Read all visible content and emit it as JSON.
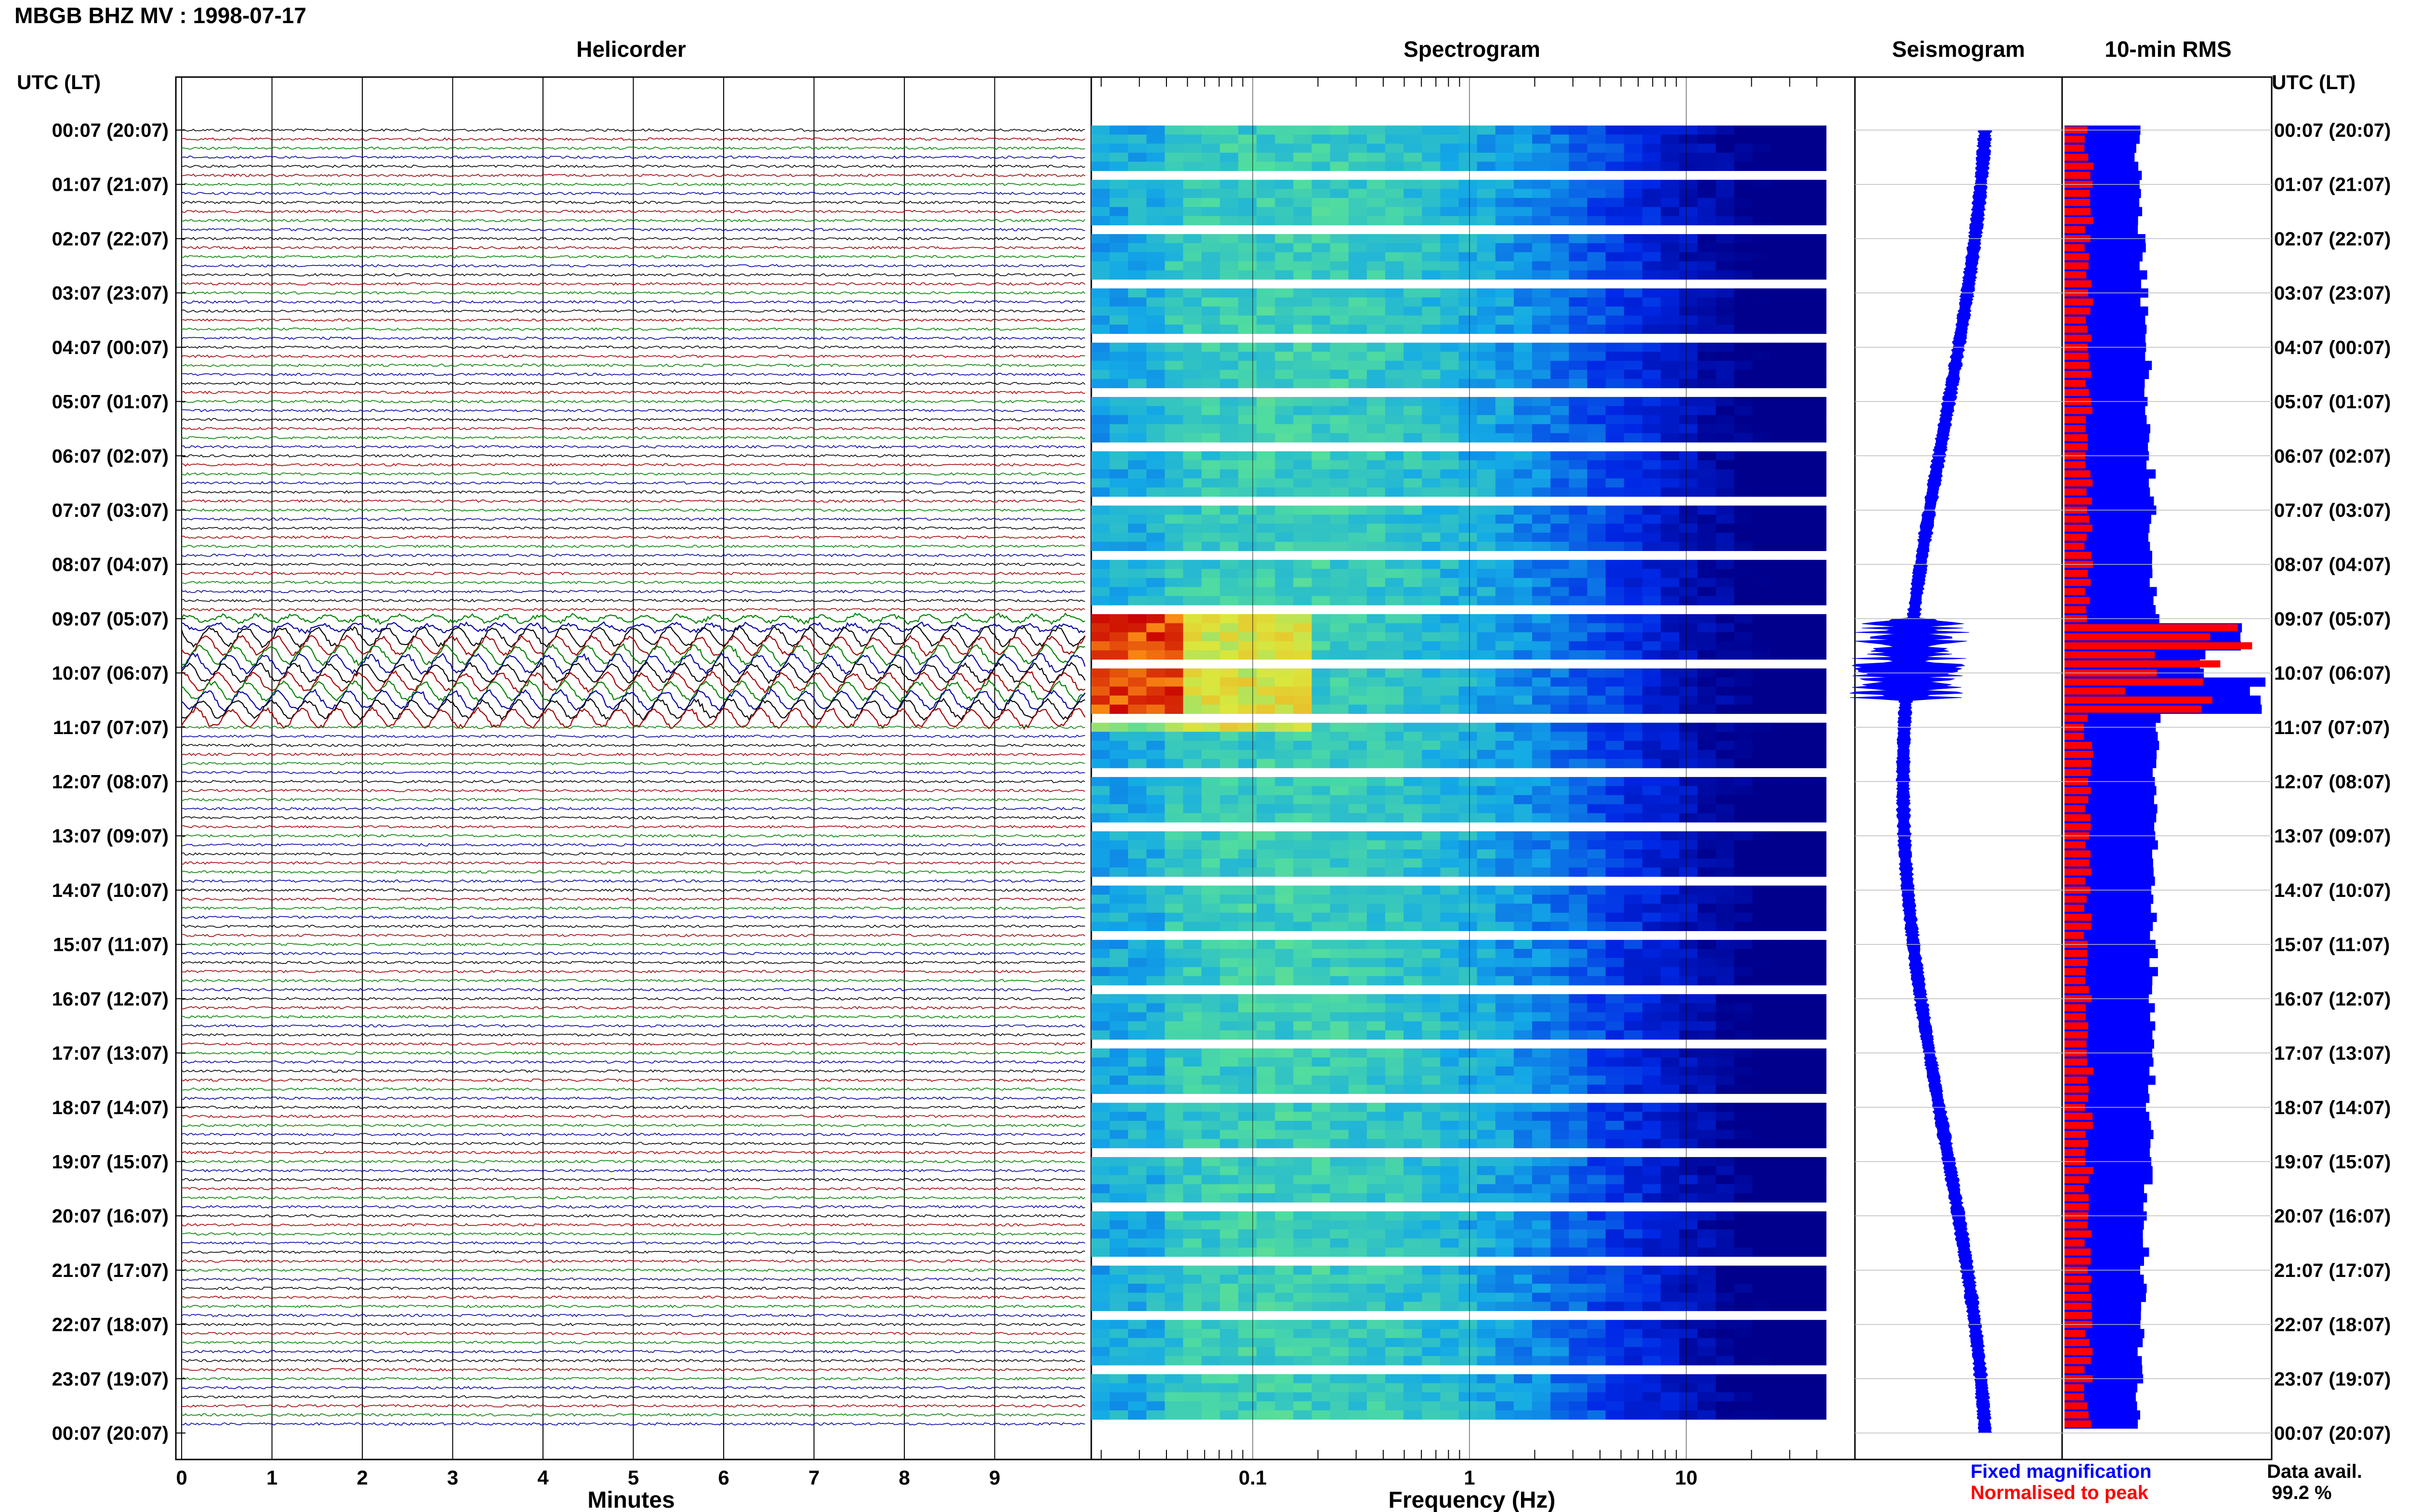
{
  "title": "MBGB BHZ MV : 1998-07-17",
  "utc_label_left": "UTC (LT)",
  "utc_label_right": "UTC (LT)",
  "panels": {
    "helicorder": "Helicorder",
    "spectrogram": "Spectrogram",
    "seismogram": "Seismogram",
    "rms": "10-min RMS"
  },
  "xlabels": {
    "helicorder": "Minutes",
    "spectrogram": "Frequency (Hz)"
  },
  "legend": {
    "fixed": "Fixed magnification",
    "normalised": "Normalised to peak",
    "fixed_color": "#0000ff",
    "normalised_color": "#ff0000"
  },
  "data_avail": {
    "label": "Data avail.",
    "value": "99.2 %"
  },
  "time_labels": [
    "00:07 (20:07)",
    "01:07 (21:07)",
    "02:07 (22:07)",
    "03:07 (23:07)",
    "04:07 (00:07)",
    "05:07 (01:07)",
    "06:07 (02:07)",
    "07:07 (03:07)",
    "08:07 (04:07)",
    "09:07 (05:07)",
    "10:07 (06:07)",
    "11:07 (07:07)",
    "12:07 (08:07)",
    "13:07 (09:07)",
    "14:07 (10:07)",
    "15:07 (11:07)",
    "16:07 (12:07)",
    "17:07 (13:07)",
    "18:07 (14:07)",
    "19:07 (15:07)",
    "20:07 (16:07)",
    "21:07 (17:07)",
    "22:07 (18:07)",
    "23:07 (19:07)",
    "00:07 (20:07)"
  ],
  "chart_data": [
    {
      "type": "line",
      "name": "helicorder",
      "title": "Helicorder",
      "xlabel": "Minutes",
      "xlim": [
        0,
        10
      ],
      "x_ticks": [
        "0",
        "1",
        "2",
        "3",
        "4",
        "5",
        "6",
        "7",
        "8",
        "9"
      ],
      "rows": 144,
      "trace_colors": [
        "#000000",
        "#a00000",
        "#008000",
        "#0000a0"
      ],
      "event_window_utc": [
        "09:07",
        "11:07"
      ]
    },
    {
      "type": "heatmap",
      "name": "spectrogram",
      "title": "Spectrogram",
      "xlabel": "Frequency (Hz)",
      "x_scale": "log",
      "xlim": [
        0.02,
        50
      ],
      "x_ticks": [
        "0.1",
        "1",
        "10"
      ],
      "rows": 144,
      "peak_band_hz": [
        0.02,
        0.1
      ],
      "peak_window_utc": [
        "09:07",
        "11:07"
      ]
    },
    {
      "type": "line",
      "name": "seismogram",
      "title": "Seismogram",
      "burst_window_utc": [
        "09:07",
        "10:37"
      ]
    },
    {
      "type": "bar",
      "name": "rms",
      "title": "10-min RMS",
      "series": [
        {
          "name": "Fixed magnification",
          "color": "#0000ff"
        },
        {
          "name": "Normalised to peak",
          "color": "#ff0000"
        }
      ],
      "bins": 144,
      "peak_window_utc": [
        "09:17",
        "10:57"
      ]
    }
  ]
}
